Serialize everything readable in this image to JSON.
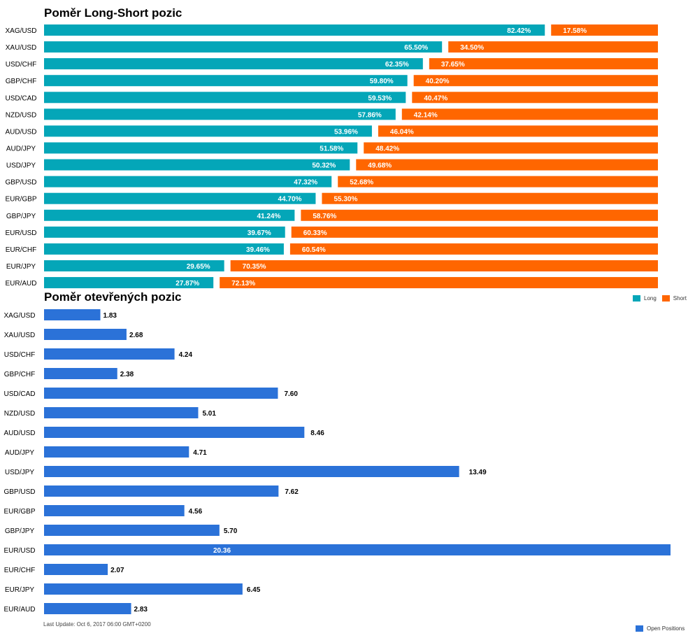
{
  "colors": {
    "long": "#04a6b8",
    "short": "#ff6600",
    "open": "#2b72d8"
  },
  "chart_data": [
    {
      "type": "bar",
      "title": "Poměr Long-Short pozic",
      "orientation": "horizontal",
      "stacked": true,
      "xlim": [
        0,
        100
      ],
      "categories": [
        "XAG/USD",
        "XAU/USD",
        "USD/CHF",
        "GBP/CHF",
        "USD/CAD",
        "NZD/USD",
        "AUD/USD",
        "AUD/JPY",
        "USD/JPY",
        "GBP/USD",
        "EUR/GBP",
        "GBP/JPY",
        "EUR/USD",
        "EUR/CHF",
        "EUR/JPY",
        "EUR/AUD"
      ],
      "series": [
        {
          "name": "Long",
          "values": [
            82.42,
            65.5,
            62.35,
            59.8,
            59.53,
            57.86,
            53.96,
            51.58,
            50.32,
            47.32,
            44.7,
            41.24,
            39.67,
            39.46,
            29.65,
            27.87
          ],
          "labels": [
            "82.42%",
            "65.50%",
            "62.35%",
            "59.80%",
            "59.53%",
            "57.86%",
            "53.96%",
            "51.58%",
            "50.32%",
            "47.32%",
            "44.70%",
            "41.24%",
            "39.67%",
            "39.46%",
            "29.65%",
            "27.87%"
          ]
        },
        {
          "name": "Short",
          "values": [
            17.58,
            34.5,
            37.65,
            40.2,
            40.47,
            42.14,
            46.04,
            48.42,
            49.68,
            52.68,
            55.3,
            58.76,
            60.33,
            60.54,
            70.35,
            72.13
          ],
          "labels": [
            "17.58%",
            "34.50%",
            "37.65%",
            "40.20%",
            "40.47%",
            "42.14%",
            "46.04%",
            "48.42%",
            "49.68%",
            "52.68%",
            "55.30%",
            "58.76%",
            "60.33%",
            "60.54%",
            "70.35%",
            "72.13%"
          ]
        }
      ],
      "legend": "bottom-right"
    },
    {
      "type": "bar",
      "title": "Poměr otevřených pozic",
      "orientation": "horizontal",
      "categories": [
        "XAG/USD",
        "XAU/USD",
        "USD/CHF",
        "GBP/CHF",
        "USD/CAD",
        "NZD/USD",
        "AUD/USD",
        "AUD/JPY",
        "USD/JPY",
        "GBP/USD",
        "EUR/GBP",
        "GBP/JPY",
        "EUR/USD",
        "EUR/CHF",
        "EUR/JPY",
        "EUR/AUD"
      ],
      "series": [
        {
          "name": "Open Positions",
          "values": [
            1.83,
            2.68,
            4.24,
            2.38,
            7.6,
            5.01,
            8.46,
            4.71,
            13.49,
            7.62,
            4.56,
            5.7,
            20.36,
            2.07,
            6.45,
            2.83
          ],
          "labels": [
            "1.83",
            "2.68",
            "4.24",
            "2.38",
            "7.60",
            "5.01",
            "8.46",
            "4.71",
            "13.49",
            "7.62",
            "4.56",
            "5.70",
            "20.36",
            "2.07",
            "6.45",
            "2.83"
          ]
        }
      ],
      "legend": "bottom-right"
    }
  ],
  "footer": "Last Update: Oct 6, 2017 06:00 GMT+0200"
}
